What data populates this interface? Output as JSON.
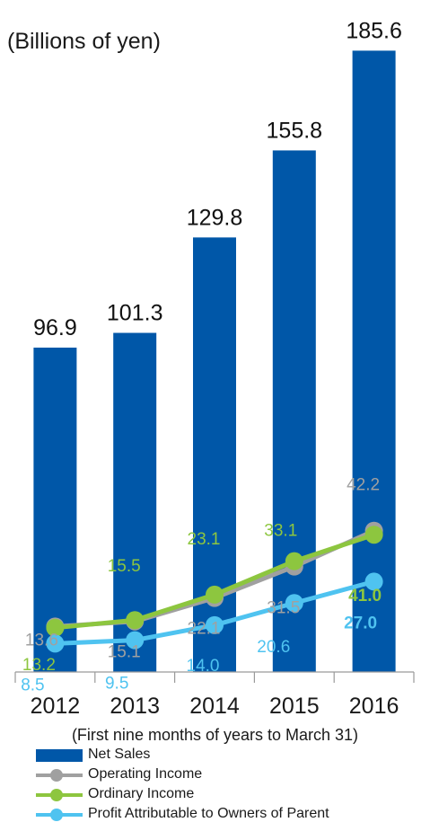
{
  "chart_data": {
    "type": "bar",
    "unit_label": "(Billions of yen)",
    "x_note": "(First nine months of years to March 31)",
    "categories": [
      "2012",
      "2013",
      "2014",
      "2015",
      "2016"
    ],
    "ylim": [
      0,
      190
    ],
    "grid": false,
    "legend_position": "bottom-left",
    "series": [
      {
        "name": "Net Sales",
        "type": "bar",
        "color": "#0057a8",
        "label_color": "#111111",
        "values": [
          96.9,
          101.3,
          129.8,
          155.8,
          185.6
        ]
      },
      {
        "name": "Operating Income",
        "type": "line",
        "color": "#a0a0a0",
        "label_color": "#a0a0a0",
        "values": [
          13.6,
          15.1,
          22.1,
          31.5,
          42.2
        ]
      },
      {
        "name": "Ordinary Income",
        "type": "line",
        "color": "#8dc63f",
        "label_color": "#8dc63f",
        "values": [
          13.2,
          15.5,
          23.1,
          33.1,
          41.0
        ]
      },
      {
        "name": "Profit Attributable to Owners of Parent",
        "type": "line",
        "color": "#4fc3f0",
        "label_color": "#4fc3f0",
        "values": [
          8.5,
          9.5,
          14.0,
          20.6,
          27.0
        ]
      }
    ]
  }
}
